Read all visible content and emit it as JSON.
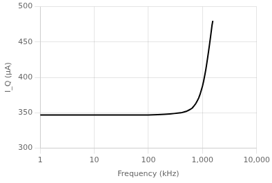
{
  "chart_data": {
    "type": "line",
    "xlabel": "Frequency (kHz)",
    "ylabel": "I_Q (μA)",
    "log": "x",
    "grid": true,
    "color": "#000000",
    "xlim": [
      1,
      10000
    ],
    "ylim": [
      300,
      500
    ],
    "xticks": [
      1,
      10,
      100,
      {
        "value": 1000,
        "label": "1,000"
      },
      {
        "value": 10000,
        "label": "10,000"
      }
    ],
    "yticks": [
      300,
      350,
      400,
      450,
      500
    ],
    "x": [
      1,
      2,
      3,
      4,
      5,
      6,
      7,
      8,
      9,
      10,
      20,
      30,
      40,
      50,
      60,
      70,
      80,
      90,
      100,
      150,
      200,
      250,
      300,
      350,
      400,
      450,
      500,
      550,
      600,
      650,
      700,
      750,
      800,
      850,
      900,
      950,
      1000,
      1050,
      1100,
      1150,
      1200,
      1250,
      1300,
      1350,
      1400,
      1450,
      1500,
      1550
    ],
    "values": [
      347,
      347,
      347,
      347,
      347,
      347,
      347,
      347,
      347,
      347,
      347,
      347,
      347,
      347,
      347,
      347,
      347,
      347,
      347,
      347.5,
      348,
      348.5,
      349,
      349.5,
      350,
      351,
      352,
      353.5,
      355,
      357,
      360,
      363,
      367,
      371,
      376,
      382,
      388,
      395,
      403,
      411,
      420,
      429,
      438,
      447,
      456,
      465,
      474,
      480
    ]
  }
}
